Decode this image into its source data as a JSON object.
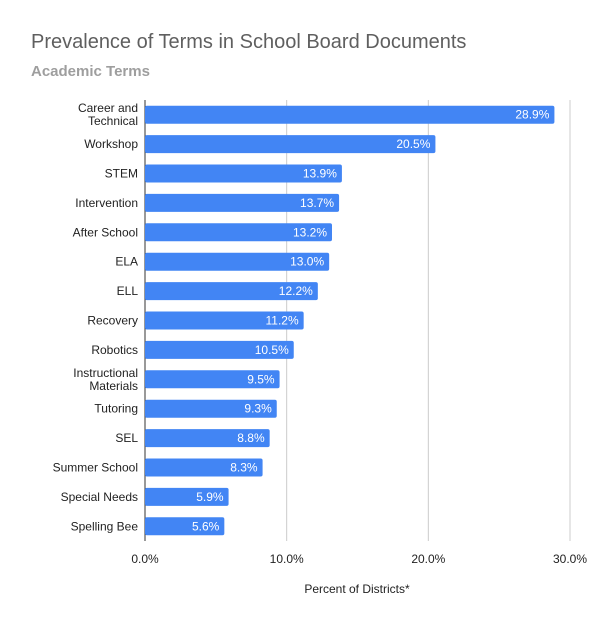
{
  "chart_data": {
    "type": "bar",
    "orientation": "horizontal",
    "title": "Prevalence of Terms in School Board Documents",
    "subtitle": "Academic Terms",
    "xlabel": "Percent of Districts*",
    "ylabel": "",
    "xlim": [
      0,
      30
    ],
    "xticks": [
      "0.0%",
      "10.0%",
      "20.0%",
      "30.0%"
    ],
    "grid": true,
    "legend": "none",
    "bar_color": "#4285f4",
    "categories": [
      [
        "Career and",
        "Technical"
      ],
      [
        "Workshop"
      ],
      [
        "STEM"
      ],
      [
        "Intervention"
      ],
      [
        "After School"
      ],
      [
        "ELA"
      ],
      [
        "ELL"
      ],
      [
        "Recovery"
      ],
      [
        "Robotics"
      ],
      [
        "Instructional",
        "Materials"
      ],
      [
        "Tutoring"
      ],
      [
        "SEL"
      ],
      [
        "Summer School"
      ],
      [
        "Special Needs"
      ],
      [
        "Spelling Bee"
      ]
    ],
    "values": [
      28.9,
      20.5,
      13.9,
      13.7,
      13.2,
      13.0,
      12.2,
      11.2,
      10.5,
      9.5,
      9.3,
      8.8,
      8.3,
      5.9,
      5.6
    ],
    "value_labels": [
      "28.9%",
      "20.5%",
      "13.9%",
      "13.7%",
      "13.2%",
      "13.0%",
      "12.2%",
      "11.2%",
      "10.5%",
      "9.5%",
      "9.3%",
      "8.8%",
      "8.3%",
      "5.9%",
      "5.6%"
    ]
  }
}
